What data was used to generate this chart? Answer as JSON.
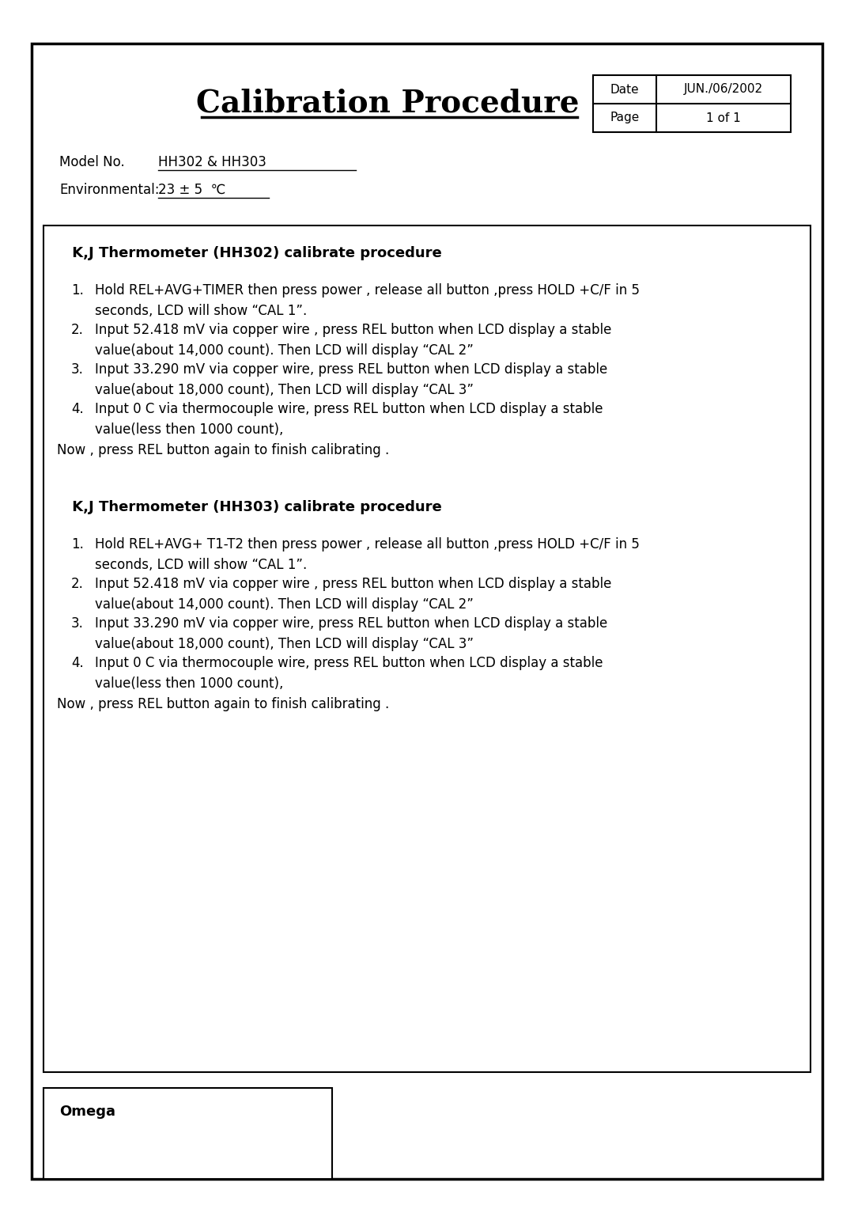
{
  "title": "Calibration Procedure",
  "date_label": "Date",
  "date_value": "JUN./06/2002",
  "page_label": "Page",
  "page_value": "1 of 1",
  "model_label": "Model No.",
  "model_value": "HH302 & HH303",
  "env_label": "Environmental:",
  "env_value": "23 ± 5  ℃",
  "section1_title": " K,J Thermometer (HH302) calibrate procedure",
  "section1_items": [
    [
      "Hold REL+AVG+TIMER then press power , release all button ,press HOLD +C/F in 5",
      "seconds, LCD will show “CAL 1”."
    ],
    [
      "Input 52.418 mV via copper wire , press REL button when LCD display a stable",
      "value(about 14,000 count). Then LCD will display “CAL 2”"
    ],
    [
      "Input 33.290 mV via copper wire, press REL button when LCD display a stable",
      "value(about 18,000 count), Then LCD will display “CAL 3”"
    ],
    [
      "Input 0 C via thermocouple wire, press REL button when LCD display a stable",
      "value(less then 1000 count),"
    ]
  ],
  "section1_footer": "Now , press REL button again to finish calibrating .",
  "section2_title": " K,J Thermometer (HH303) calibrate procedure",
  "section2_items": [
    [
      "Hold REL+AVG+ T1-T2 then press power , release all button ,press HOLD +C/F in 5",
      "seconds, LCD will show “CAL 1”."
    ],
    [
      "Input 52.418 mV via copper wire , press REL button when LCD display a stable",
      "value(about 14,000 count). Then LCD will display “CAL 2”"
    ],
    [
      "Input 33.290 mV via copper wire, press REL button when LCD display a stable",
      "value(about 18,000 count), Then LCD will display “CAL 3”"
    ],
    [
      "Input 0 C via thermocouple wire, press REL button when LCD display a stable",
      "value(less then 1000 count),"
    ]
  ],
  "section2_footer": "Now , press REL button again to finish calibrating .",
  "omega_label": "Omega",
  "bg_color": "#ffffff",
  "border_color": "#000000",
  "text_color": "#000000",
  "fig_width": 10.8,
  "fig_height": 15.28,
  "dpi": 100
}
